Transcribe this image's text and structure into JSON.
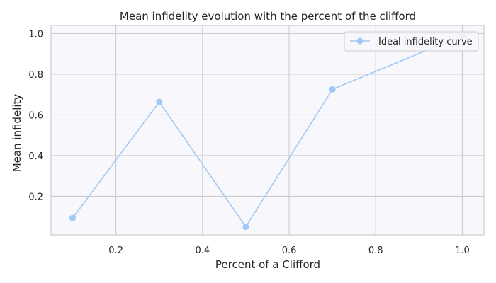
{
  "chart_data": {
    "type": "line",
    "title": "Mean infidelity evolution with the percent of the clifford",
    "xlabel": "Percent of a Clifford",
    "ylabel": "Mean infidelity",
    "xlim": [
      0.05,
      1.05
    ],
    "ylim": [
      0.01,
      1.04
    ],
    "xticks": [
      0.2,
      0.4,
      0.6,
      0.8,
      1.0
    ],
    "xtick_labels": [
      "0.2",
      "0.4",
      "0.6",
      "0.8",
      "1.0"
    ],
    "yticks": [
      0.2,
      0.4,
      0.6,
      0.8,
      1.0
    ],
    "ytick_labels": [
      "0.2",
      "0.4",
      "0.6",
      "0.8",
      "1.0"
    ],
    "grid": true,
    "legend_position": "top-right",
    "series": [
      {
        "name": "Ideal infidelity curve",
        "color": "#a1c9f4",
        "marker": "circle",
        "x": [
          0.1,
          0.3,
          0.5,
          0.7,
          1.0
        ],
        "y": [
          0.093,
          0.664,
          0.05,
          0.726,
          0.99
        ]
      }
    ],
    "colors": {
      "plot_background": "#f8f8fc",
      "grid": "#cccccc",
      "frame": "#cccccc",
      "text": "#262626"
    }
  }
}
